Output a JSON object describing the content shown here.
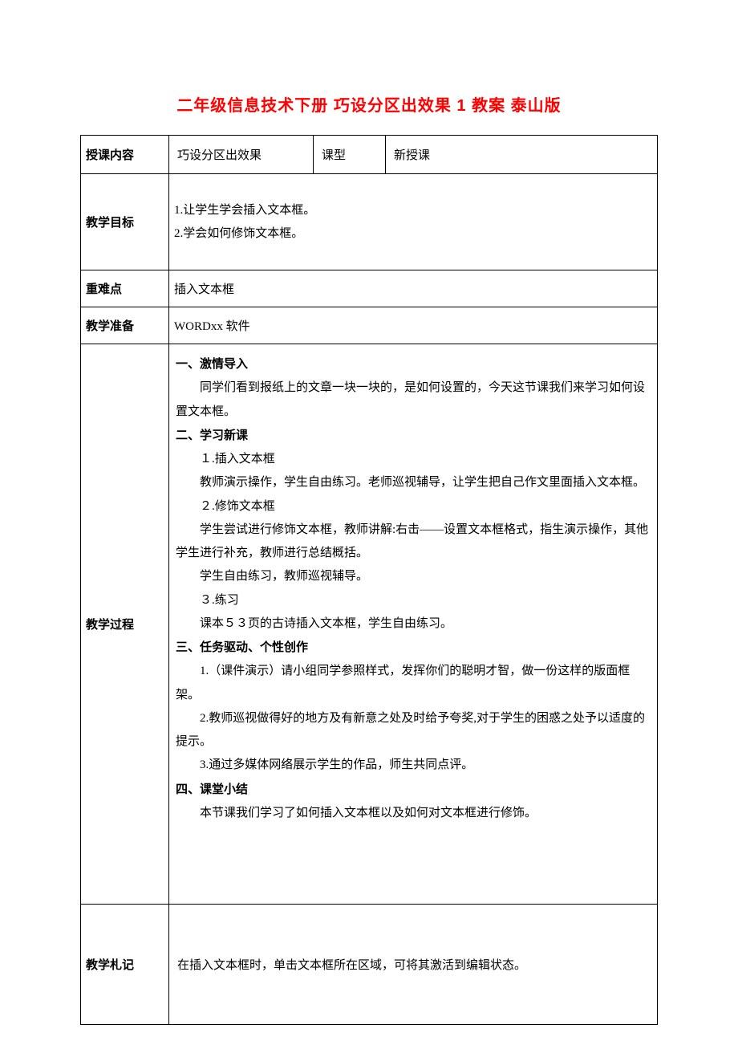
{
  "document": {
    "title": "二年级信息技术下册 巧设分区出效果 1 教案 泰山版",
    "table": {
      "row1": {
        "label": "授课内容",
        "subject": "巧设分区出效果",
        "type_label": "课型",
        "type_value": "新授课"
      },
      "row2": {
        "label": "教学目标",
        "line1": "1.让学生学会插入文本框。",
        "line2": "2.学会如何修饰文本框。"
      },
      "row3": {
        "label": "重难点",
        "content": "插入文本框"
      },
      "row4": {
        "label": "教学准备",
        "content": "WORDxx 软件"
      },
      "row5": {
        "label": "教学过程",
        "section1_title": "一、激情导入",
        "section1_p1": "同学们看到报纸上的文章一块一块的，是如何设置的，今天这节课我们来学习如何设置文本框。",
        "section2_title": "二、学习新课",
        "section2_sub1": "１.插入文本框",
        "section2_p1": "教师演示操作，学生自由练习。老师巡视辅导，让学生把自己作文里面插入文本框。",
        "section2_sub2": "２.修饰文本框",
        "section2_p2": "学生尝试进行修饰文本框，教师讲解:右击——设置文本框格式，指生演示操作，其他学生进行补充，教师进行总结概括。",
        "section2_p3": "学生自由练习，教师巡视辅导。",
        "section2_sub3": "３.练习",
        "section2_p4": "课本５３页的古诗插入文本框，学生自由练习。",
        "section3_title": "三、任务驱动、个性创作",
        "section3_p1": "1.（课件演示）请小组同学参照样式，发挥你们的聪明才智，做一份这样的版面框架。",
        "section3_p2": "2.教师巡视做得好的地方及有新意之处及时给予夸奖,对于学生的困惑之处予以适度的提示。",
        "section3_p3": "3.通过多媒体网络展示学生的作品，师生共同点评。",
        "section4_title": "四、课堂小结",
        "section4_p1": "本节课我们学习了如何插入文本框以及如何对文本框进行修饰。"
      },
      "row6": {
        "label": "教学札记",
        "content": "在插入文本框时，单击文本框所在区域，可将其激活到编辑状态。"
      }
    },
    "colors": {
      "title_color": "#ff0000",
      "text_color": "#000000",
      "border_color": "#000000",
      "background": "#ffffff"
    },
    "typography": {
      "title_fontsize": 20,
      "body_fontsize": 15,
      "title_font": "SimHei",
      "body_font": "SimSun"
    }
  }
}
